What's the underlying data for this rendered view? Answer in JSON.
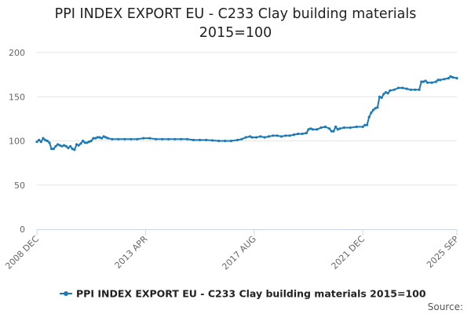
{
  "title": {
    "line1": "PPI INDEX EXPORT EU - C233 Clay building materials",
    "line2": "2015=100"
  },
  "source_label": "Source:",
  "colors": {
    "series": "#1a7ab8",
    "grid": "#e6e6e6",
    "axis": "#ccd6eb"
  },
  "chart_data": {
    "type": "line",
    "title": "PPI INDEX EXPORT EU - C233 Clay building materials 2015=100",
    "xlabel": "",
    "ylabel": "",
    "ylim": [
      0,
      200
    ],
    "yticks": [
      0,
      50,
      100,
      150,
      200
    ],
    "xrange": [
      "2008-12",
      "2025-09"
    ],
    "xticks": [
      {
        "label": "2008 DEC",
        "date": "2008-12"
      },
      {
        "label": "2013 APR",
        "date": "2013-04"
      },
      {
        "label": "2017 AUG",
        "date": "2017-08"
      },
      {
        "label": "2021 DEC",
        "date": "2021-12"
      },
      {
        "label": "2025 SEP",
        "date": "2025-09"
      }
    ],
    "grid": "horizontal",
    "legend_position": "bottom-center",
    "series": [
      {
        "name": "PPI INDEX EXPORT EU - C233 Clay building materials 2015=100",
        "points": [
          [
            "2008-12",
            99
          ],
          [
            "2009-01",
            101
          ],
          [
            "2009-02",
            99
          ],
          [
            "2009-03",
            103
          ],
          [
            "2009-04",
            101
          ],
          [
            "2009-05",
            100
          ],
          [
            "2009-06",
            98
          ],
          [
            "2009-07",
            91
          ],
          [
            "2009-08",
            91
          ],
          [
            "2009-09",
            94
          ],
          [
            "2009-10",
            96
          ],
          [
            "2009-11",
            95
          ],
          [
            "2009-12",
            94
          ],
          [
            "2010-01",
            95
          ],
          [
            "2010-02",
            94
          ],
          [
            "2010-03",
            92
          ],
          [
            "2010-04",
            94
          ],
          [
            "2010-05",
            91
          ],
          [
            "2010-06",
            90
          ],
          [
            "2010-07",
            96
          ],
          [
            "2010-08",
            95
          ],
          [
            "2010-09",
            97
          ],
          [
            "2010-10",
            100
          ],
          [
            "2010-11",
            98
          ],
          [
            "2010-12",
            98
          ],
          [
            "2011-01",
            99
          ],
          [
            "2011-02",
            100
          ],
          [
            "2011-03",
            103
          ],
          [
            "2011-04",
            103
          ],
          [
            "2011-05",
            104
          ],
          [
            "2011-06",
            104
          ],
          [
            "2011-07",
            103
          ],
          [
            "2011-08",
            105
          ],
          [
            "2011-09",
            104
          ],
          [
            "2011-10",
            103
          ],
          [
            "2011-12",
            102
          ],
          [
            "2012-03",
            102
          ],
          [
            "2012-06",
            102
          ],
          [
            "2012-09",
            102
          ],
          [
            "2012-12",
            102
          ],
          [
            "2013-03",
            103
          ],
          [
            "2013-06",
            103
          ],
          [
            "2013-09",
            102
          ],
          [
            "2013-12",
            102
          ],
          [
            "2014-03",
            102
          ],
          [
            "2014-06",
            102
          ],
          [
            "2014-09",
            102
          ],
          [
            "2014-12",
            102
          ],
          [
            "2015-03",
            101
          ],
          [
            "2015-06",
            101
          ],
          [
            "2015-09",
            101
          ],
          [
            "2015-12",
            100.5
          ],
          [
            "2016-03",
            100
          ],
          [
            "2016-06",
            100
          ],
          [
            "2016-09",
            100
          ],
          [
            "2016-12",
            101
          ],
          [
            "2017-02",
            102
          ],
          [
            "2017-04",
            104
          ],
          [
            "2017-06",
            105
          ],
          [
            "2017-07",
            104
          ],
          [
            "2017-09",
            104
          ],
          [
            "2017-11",
            105
          ],
          [
            "2018-01",
            104
          ],
          [
            "2018-03",
            105
          ],
          [
            "2018-05",
            106
          ],
          [
            "2018-07",
            106
          ],
          [
            "2018-09",
            105
          ],
          [
            "2018-11",
            106
          ],
          [
            "2019-01",
            106
          ],
          [
            "2019-03",
            107
          ],
          [
            "2019-05",
            108
          ],
          [
            "2019-07",
            108
          ],
          [
            "2019-09",
            109
          ],
          [
            "2019-10",
            113
          ],
          [
            "2019-11",
            114
          ],
          [
            "2019-12",
            113
          ],
          [
            "2020-02",
            113
          ],
          [
            "2020-04",
            115
          ],
          [
            "2020-06",
            116
          ],
          [
            "2020-08",
            114
          ],
          [
            "2020-09",
            111
          ],
          [
            "2020-10",
            111
          ],
          [
            "2020-11",
            116
          ],
          [
            "2020-12",
            113
          ],
          [
            "2021-01",
            114
          ],
          [
            "2021-03",
            115
          ],
          [
            "2021-06",
            115
          ],
          [
            "2021-09",
            116
          ],
          [
            "2021-12",
            116
          ],
          [
            "2022-01",
            118
          ],
          [
            "2022-02",
            118
          ],
          [
            "2022-03",
            127
          ],
          [
            "2022-04",
            132
          ],
          [
            "2022-05",
            135
          ],
          [
            "2022-06",
            137
          ],
          [
            "2022-07",
            138
          ],
          [
            "2022-08",
            150
          ],
          [
            "2022-09",
            149
          ],
          [
            "2022-10",
            153
          ],
          [
            "2022-11",
            155
          ],
          [
            "2022-12",
            154
          ],
          [
            "2023-01",
            157
          ],
          [
            "2023-03",
            158
          ],
          [
            "2023-05",
            160
          ],
          [
            "2023-07",
            160
          ],
          [
            "2023-09",
            159
          ],
          [
            "2023-11",
            158
          ],
          [
            "2024-01",
            158
          ],
          [
            "2024-03",
            158
          ],
          [
            "2024-04",
            167
          ],
          [
            "2024-05",
            167
          ],
          [
            "2024-06",
            168
          ],
          [
            "2024-07",
            166
          ],
          [
            "2024-09",
            166
          ],
          [
            "2024-11",
            167
          ],
          [
            "2024-12",
            169
          ],
          [
            "2025-01",
            169
          ],
          [
            "2025-03",
            170
          ],
          [
            "2025-05",
            171
          ],
          [
            "2025-06",
            173
          ],
          [
            "2025-07",
            172
          ],
          [
            "2025-09",
            171
          ]
        ]
      }
    ]
  }
}
